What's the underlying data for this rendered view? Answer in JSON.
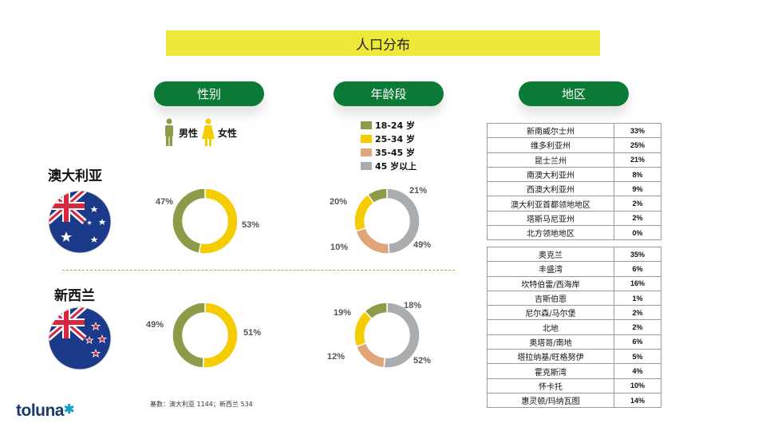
{
  "title": "人口分布",
  "headers": {
    "gender": "性别",
    "age": "年龄段",
    "region": "地区"
  },
  "gender_legend": {
    "male": "男性",
    "female": "女性"
  },
  "age_legend": [
    "18-24 岁",
    "25-34 岁",
    "35-45 岁",
    "45 岁以上"
  ],
  "countries": {
    "au": "澳大利亚",
    "nz": "新西兰"
  },
  "base_note": "基数：澳大利亚 1144；新西兰 534",
  "logo": "toluna",
  "colors": {
    "male": "#8d9a47",
    "female": "#f5cc00",
    "age_18_24": "#8d9a47",
    "age_25_34": "#f5cc00",
    "age_35_45": "#e0a57a",
    "age_45_plus": "#a9adb0",
    "header_green": "#0b7a36",
    "title_yellow": "#ece93a"
  },
  "chart_data": [
    {
      "type": "pie",
      "name": "澳大利亚-性别",
      "labels": [
        "男性",
        "女性"
      ],
      "values": [
        47,
        53
      ],
      "display": [
        "47%",
        "53%"
      ]
    },
    {
      "type": "pie",
      "name": "新西兰-性别",
      "labels": [
        "男性",
        "女性"
      ],
      "values": [
        49,
        51
      ],
      "display": [
        "49%",
        "51%"
      ]
    },
    {
      "type": "pie",
      "name": "澳大利亚-年龄段",
      "labels": [
        "18-24 岁",
        "25-34 岁",
        "35-45 岁",
        "45 岁以上"
      ],
      "values": [
        10,
        20,
        21,
        49
      ],
      "display": [
        "10%",
        "20%",
        "21%",
        "49%"
      ]
    },
    {
      "type": "pie",
      "name": "新西兰-年龄段",
      "labels": [
        "18-24 岁",
        "25-34 岁",
        "35-45 岁",
        "45 岁以上"
      ],
      "values": [
        12,
        19,
        18,
        52
      ],
      "display": [
        "12%",
        "19%",
        "18%",
        "52%"
      ]
    },
    {
      "type": "table",
      "name": "澳大利亚-地区",
      "rows": [
        [
          "新南威尔士州",
          "33%"
        ],
        [
          "维多利亚州",
          "25%"
        ],
        [
          "昆士兰州",
          "21%"
        ],
        [
          "南澳大利亚州",
          "8%"
        ],
        [
          "西澳大利亚州",
          "9%"
        ],
        [
          "澳大利亚首都领地地区",
          "2%"
        ],
        [
          "塔斯马尼亚州",
          "2%"
        ],
        [
          "北方领地地区",
          "0%"
        ]
      ]
    },
    {
      "type": "table",
      "name": "新西兰-地区",
      "rows": [
        [
          "奥克兰",
          "35%"
        ],
        [
          "丰盛湾",
          "6%"
        ],
        [
          "坎特伯雷/西海岸",
          "16%"
        ],
        [
          "吉斯伯恩",
          "1%"
        ],
        [
          "尼尔森/马尔堡",
          "2%"
        ],
        [
          "北地",
          "2%"
        ],
        [
          "奥塔哥/南地",
          "6%"
        ],
        [
          "塔拉纳基/旺格努伊",
          "5%"
        ],
        [
          "霍克斯湾",
          "4%"
        ],
        [
          "怀卡托",
          "10%"
        ],
        [
          "惠灵顿/玛纳瓦图",
          "14%"
        ]
      ]
    }
  ]
}
